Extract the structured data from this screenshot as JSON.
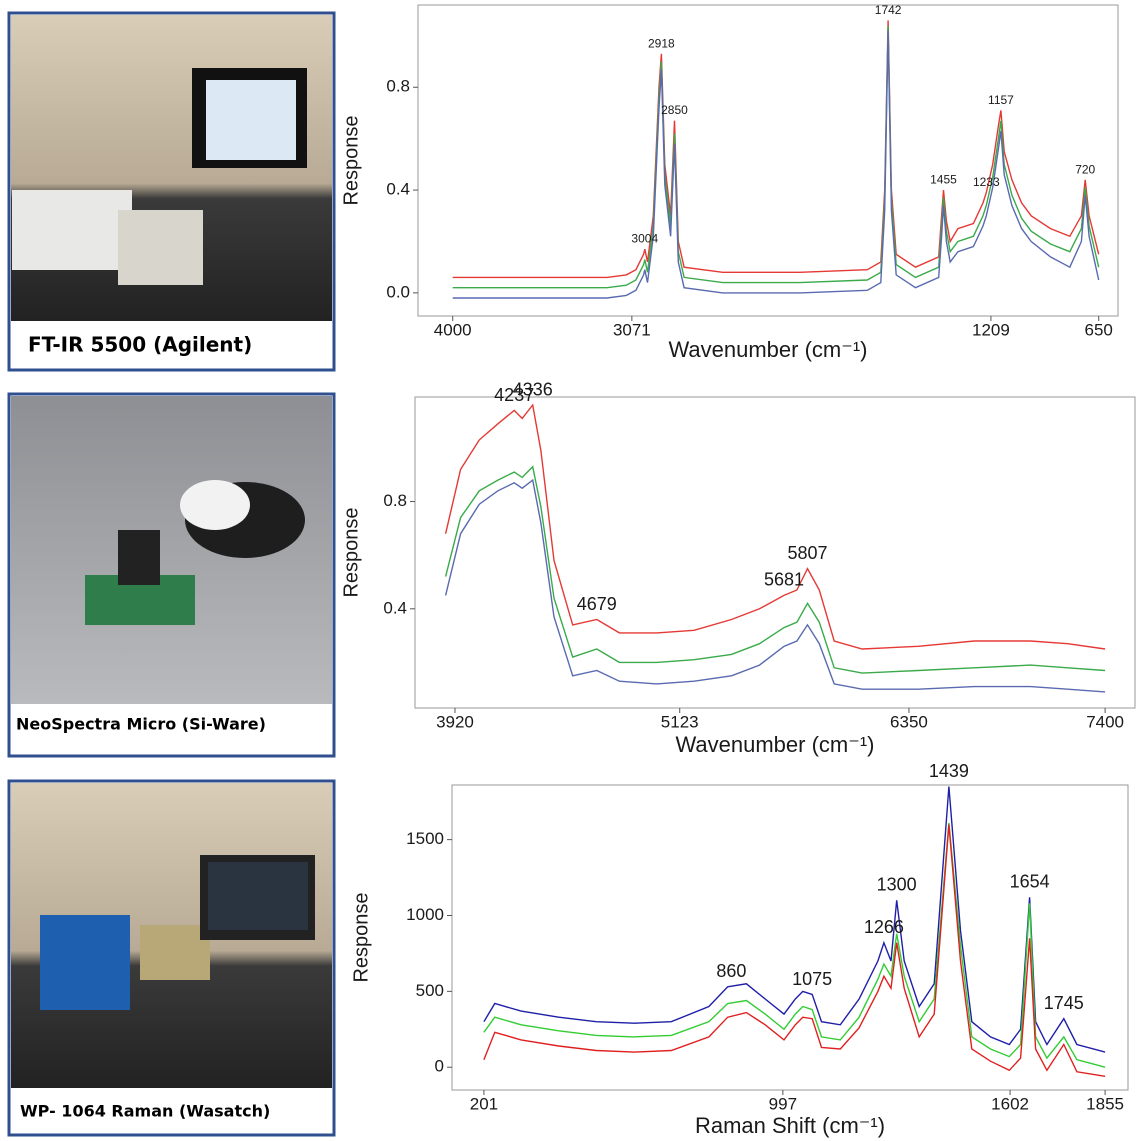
{
  "photo_captions": [
    "FT-IR 5500 (Agilent)",
    "NeoSpectra Micro (Si-Ware)",
    "WP- 1064 Raman (Wasatch)"
  ],
  "chart_data": [
    {
      "type": "line",
      "x_label": "Wavenumber (cm⁻¹)",
      "y_label": "Response",
      "xlim": [
        4180,
        550
      ],
      "xticks": [
        4000,
        3071,
        1209,
        650
      ],
      "ylim": [
        -0.09,
        1.12
      ],
      "yticks": [
        {
          "value": 0,
          "label": "0.0"
        },
        0.4,
        0.8
      ],
      "x": [
        4000,
        3600,
        3200,
        3100,
        3050,
        3010,
        3004,
        2990,
        2960,
        2930,
        2918,
        2900,
        2870,
        2850,
        2830,
        2800,
        2600,
        2200,
        1850,
        1780,
        1760,
        1742,
        1725,
        1700,
        1600,
        1480,
        1465,
        1455,
        1440,
        1420,
        1380,
        1300,
        1250,
        1233,
        1200,
        1170,
        1157,
        1140,
        1100,
        1050,
        1000,
        900,
        800,
        740,
        720,
        700,
        650
      ],
      "series": [
        {
          "color": "#e53935",
          "values": [
            0.06,
            0.06,
            0.06,
            0.07,
            0.09,
            0.15,
            0.17,
            0.12,
            0.3,
            0.8,
            0.93,
            0.5,
            0.3,
            0.67,
            0.2,
            0.1,
            0.08,
            0.08,
            0.09,
            0.12,
            0.4,
            1.06,
            0.4,
            0.15,
            0.1,
            0.14,
            0.3,
            0.4,
            0.28,
            0.2,
            0.25,
            0.27,
            0.35,
            0.39,
            0.5,
            0.65,
            0.71,
            0.55,
            0.44,
            0.35,
            0.3,
            0.25,
            0.22,
            0.3,
            0.44,
            0.3,
            0.15
          ]
        },
        {
          "color": "#3aaa4a",
          "values": [
            0.02,
            0.02,
            0.02,
            0.03,
            0.05,
            0.11,
            0.13,
            0.08,
            0.26,
            0.76,
            0.9,
            0.46,
            0.26,
            0.62,
            0.16,
            0.06,
            0.04,
            0.04,
            0.05,
            0.08,
            0.36,
            1.04,
            0.36,
            0.11,
            0.06,
            0.1,
            0.26,
            0.37,
            0.24,
            0.16,
            0.2,
            0.22,
            0.3,
            0.34,
            0.45,
            0.6,
            0.67,
            0.5,
            0.38,
            0.29,
            0.24,
            0.19,
            0.16,
            0.25,
            0.41,
            0.26,
            0.1
          ]
        },
        {
          "color": "#5a6ab0",
          "values": [
            -0.02,
            -0.02,
            -0.02,
            -0.01,
            0.01,
            0.07,
            0.09,
            0.04,
            0.22,
            0.72,
            0.87,
            0.42,
            0.22,
            0.58,
            0.12,
            0.02,
            0,
            0,
            0.01,
            0.04,
            0.32,
            1.02,
            0.32,
            0.07,
            0.02,
            0.06,
            0.22,
            0.34,
            0.2,
            0.12,
            0.16,
            0.18,
            0.26,
            0.3,
            0.41,
            0.56,
            0.63,
            0.46,
            0.34,
            0.25,
            0.2,
            0.14,
            0.1,
            0.2,
            0.38,
            0.22,
            0.05
          ]
        }
      ],
      "peak_labels": [
        3004,
        2918,
        2850,
        1742,
        1455,
        1233,
        1157,
        720
      ]
    },
    {
      "type": "line",
      "x_label": "Wavenumber (cm⁻¹)",
      "y_label": "Response",
      "xlim": [
        3706,
        7560
      ],
      "xticks": [
        3920,
        5123,
        6350,
        7400
      ],
      "ylim": [
        0.03,
        1.19
      ],
      "yticks": [
        0.4,
        0.8
      ],
      "x": [
        3870,
        3950,
        4050,
        4150,
        4237,
        4280,
        4336,
        4380,
        4450,
        4550,
        4679,
        4800,
        5000,
        5200,
        5400,
        5550,
        5681,
        5750,
        5807,
        5870,
        5950,
        6100,
        6400,
        6700,
        7000,
        7200,
        7400
      ],
      "series": [
        {
          "color": "#e53935",
          "values": [
            0.68,
            0.92,
            1.03,
            1.09,
            1.14,
            1.11,
            1.16,
            0.99,
            0.58,
            0.34,
            0.36,
            0.31,
            0.31,
            0.32,
            0.36,
            0.4,
            0.45,
            0.47,
            0.55,
            0.47,
            0.28,
            0.25,
            0.26,
            0.28,
            0.28,
            0.27,
            0.25
          ]
        },
        {
          "color": "#3aaa4a",
          "values": [
            0.52,
            0.74,
            0.84,
            0.88,
            0.91,
            0.89,
            0.93,
            0.78,
            0.44,
            0.22,
            0.25,
            0.2,
            0.2,
            0.21,
            0.23,
            0.27,
            0.33,
            0.35,
            0.42,
            0.35,
            0.18,
            0.16,
            0.17,
            0.18,
            0.19,
            0.18,
            0.17
          ]
        },
        {
          "color": "#5a6ab0",
          "values": [
            0.45,
            0.68,
            0.79,
            0.84,
            0.87,
            0.85,
            0.88,
            0.72,
            0.37,
            0.15,
            0.17,
            0.13,
            0.12,
            0.13,
            0.15,
            0.19,
            0.26,
            0.28,
            0.34,
            0.27,
            0.12,
            0.1,
            0.1,
            0.11,
            0.11,
            0.1,
            0.09
          ]
        }
      ],
      "peak_labels": [
        4237,
        4336,
        4679,
        5681,
        5807
      ]
    },
    {
      "type": "line",
      "x_label": "Raman Shift (cm⁻¹)",
      "y_label": "Response",
      "xlim": [
        116,
        1916
      ],
      "xticks": [
        201,
        997,
        1602,
        1855
      ],
      "ylim": [
        -150,
        1860
      ],
      "yticks": [
        0,
        500,
        1000,
        1500
      ],
      "x": [
        201,
        230,
        300,
        400,
        500,
        600,
        700,
        800,
        850,
        900,
        950,
        1000,
        1030,
        1050,
        1075,
        1100,
        1150,
        1200,
        1250,
        1266,
        1285,
        1300,
        1320,
        1360,
        1400,
        1439,
        1470,
        1500,
        1550,
        1600,
        1630,
        1654,
        1670,
        1700,
        1745,
        1780,
        1855
      ],
      "series": [
        {
          "color": "#1f1fa8",
          "values": [
            300,
            420,
            370,
            330,
            300,
            290,
            300,
            400,
            530,
            550,
            450,
            350,
            450,
            500,
            480,
            300,
            280,
            450,
            700,
            820,
            700,
            1100,
            700,
            400,
            550,
            1850,
            900,
            300,
            200,
            150,
            250,
            1120,
            300,
            150,
            320,
            150,
            100
          ]
        },
        {
          "color": "#33cc33",
          "values": [
            230,
            330,
            280,
            240,
            210,
            200,
            210,
            300,
            420,
            440,
            350,
            250,
            350,
            400,
            380,
            200,
            180,
            330,
            580,
            680,
            600,
            880,
            600,
            300,
            450,
            1610,
            800,
            200,
            120,
            70,
            150,
            1080,
            200,
            60,
            200,
            50,
            0
          ]
        },
        {
          "color": "#e02020",
          "values": [
            50,
            230,
            180,
            140,
            110,
            100,
            110,
            200,
            330,
            360,
            280,
            180,
            280,
            330,
            320,
            130,
            120,
            260,
            500,
            600,
            520,
            820,
            520,
            200,
            350,
            1600,
            700,
            120,
            40,
            -20,
            60,
            850,
            120,
            -20,
            150,
            -30,
            -60
          ]
        }
      ],
      "peak_labels": [
        860,
        1075,
        1266,
        1300,
        1439,
        1654,
        1745
      ]
    }
  ]
}
